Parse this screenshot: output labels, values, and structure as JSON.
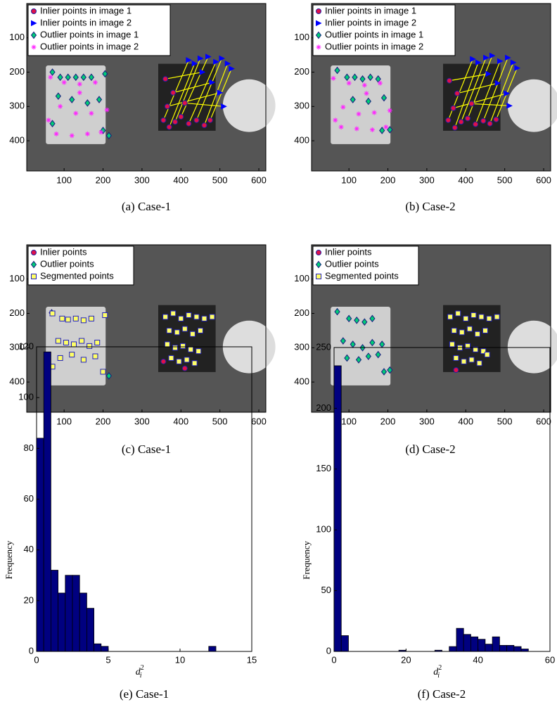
{
  "chart_data": [
    {
      "type": "scatter",
      "caption": "(a) Case-1",
      "xlim": [
        4,
        618
      ],
      "ylim": [
        0,
        488
      ],
      "y_reversed": true,
      "xticks": [
        100,
        200,
        300,
        400,
        500,
        600
      ],
      "yticks": [
        100,
        200,
        300,
        400
      ],
      "legend": "upper left",
      "match_lines": "#ffff00",
      "series": [
        {
          "name": "Inlier points in image 1",
          "marker": "circle",
          "color": "#e0104a",
          "edgecolor": "#2020a0",
          "x": [
            355,
            370,
            385,
            400,
            420,
            440,
            460,
            475,
            360,
            380,
            365,
            410
          ],
          "y": [
            340,
            360,
            345,
            330,
            350,
            340,
            355,
            340,
            220,
            260,
            300,
            290
          ]
        },
        {
          "name": "Inlier points in image 2",
          "marker": "triangle",
          "color": "#0000ff",
          "edgecolor": "#0000ff",
          "x": [
            420,
            435,
            450,
            470,
            490,
            505,
            520,
            530,
            455,
            480,
            500,
            510
          ],
          "y": [
            165,
            175,
            160,
            155,
            170,
            160,
            175,
            190,
            200,
            230,
            260,
            300
          ]
        },
        {
          "name": "Outlier points in image 1",
          "marker": "diamond",
          "color": "#00cc77",
          "edgecolor": "#1a1a80",
          "x": [
            70,
            90,
            110,
            130,
            150,
            170,
            205,
            85,
            120,
            160,
            190,
            70,
            200,
            215
          ],
          "y": [
            200,
            215,
            215,
            215,
            215,
            215,
            205,
            270,
            280,
            290,
            280,
            350,
            370,
            385
          ]
        },
        {
          "name": "Outlier points in image 2",
          "marker": "star",
          "color": "#ff22ff",
          "edgecolor": "#ff22ff",
          "x": [
            65,
            100,
            140,
            180,
            90,
            130,
            170,
            210,
            80,
            120,
            160,
            195,
            60,
            140
          ],
          "y": [
            215,
            230,
            235,
            230,
            300,
            320,
            320,
            310,
            380,
            385,
            380,
            375,
            340,
            260
          ]
        }
      ]
    },
    {
      "type": "scatter",
      "caption": "(b) Case-2",
      "xlim": [
        4,
        618
      ],
      "ylim": [
        0,
        488
      ],
      "y_reversed": true,
      "xticks": [
        100,
        200,
        300,
        400,
        500,
        600
      ],
      "yticks": [
        100,
        200,
        300,
        400
      ],
      "legend": "upper left",
      "match_lines": "#ffff00",
      "series": [
        {
          "name": "Inlier points in image 1",
          "marker": "circle",
          "color": "#e0104a",
          "edgecolor": "#2020a0",
          "x": [
            355,
            372,
            388,
            405,
            425,
            445,
            462,
            478,
            358,
            378,
            368,
            415
          ],
          "y": [
            340,
            362,
            345,
            335,
            352,
            342,
            350,
            338,
            225,
            262,
            305,
            292
          ]
        },
        {
          "name": "Inlier points in image 2",
          "marker": "triangle",
          "color": "#0000ff",
          "edgecolor": "#0000ff",
          "x": [
            418,
            432,
            452,
            468,
            488,
            508,
            522,
            532,
            458,
            482,
            505,
            512
          ],
          "y": [
            162,
            172,
            158,
            152,
            168,
            158,
            172,
            188,
            205,
            232,
            262,
            298
          ]
        },
        {
          "name": "Outlier points in image 1",
          "marker": "diamond",
          "color": "#00cc77",
          "edgecolor": "#1a1a80",
          "x": [
            70,
            95,
            115,
            135,
            155,
            175,
            110,
            150,
            190,
            185,
            205
          ],
          "y": [
            195,
            215,
            215,
            220,
            215,
            220,
            280,
            285,
            275,
            370,
            368
          ]
        },
        {
          "name": "Outlier points in image 2",
          "marker": "star",
          "color": "#ff22ff",
          "edgecolor": "#ff22ff",
          "x": [
            60,
            100,
            140,
            180,
            85,
            125,
            165,
            205,
            80,
            120,
            160,
            195,
            65,
            145
          ],
          "y": [
            218,
            232,
            238,
            232,
            302,
            322,
            318,
            312,
            360,
            365,
            368,
            360,
            340,
            262
          ]
        }
      ]
    },
    {
      "type": "scatter",
      "caption": "(c) Case-1",
      "xlim": [
        4,
        618
      ],
      "ylim": [
        0,
        488
      ],
      "y_reversed": true,
      "xticks": [
        100,
        200,
        300,
        400,
        500,
        600
      ],
      "yticks": [
        100,
        200,
        300,
        400
      ],
      "legend": "upper left",
      "series": [
        {
          "name": "Inlier points",
          "marker": "circle",
          "color": "#e0104a",
          "edgecolor": "#2020a0",
          "x": [
            355,
            410
          ],
          "y": [
            340,
            360
          ]
        },
        {
          "name": "Outlier points",
          "marker": "diamond",
          "color": "#00cc77",
          "edgecolor": "#1a1a80",
          "x": [
            68,
            215
          ],
          "y": [
            198,
            382
          ]
        },
        {
          "name": "Segmented points",
          "marker": "square",
          "color": "#ffff66",
          "edgecolor": "#2020c0",
          "x": [
            70,
            95,
            110,
            130,
            150,
            170,
            205,
            85,
            105,
            125,
            145,
            165,
            185,
            90,
            120,
            150,
            180,
            70,
            200,
            360,
            380,
            400,
            420,
            440,
            460,
            480,
            370,
            390,
            410,
            430,
            450,
            365,
            385,
            405,
            425,
            445,
            375,
            395,
            415,
            435
          ],
          "y": [
            200,
            215,
            218,
            215,
            220,
            215,
            205,
            280,
            285,
            290,
            280,
            295,
            285,
            330,
            320,
            335,
            325,
            355,
            370,
            210,
            200,
            215,
            205,
            210,
            215,
            210,
            250,
            255,
            245,
            260,
            250,
            290,
            300,
            295,
            305,
            310,
            330,
            340,
            335,
            345
          ]
        }
      ]
    },
    {
      "type": "scatter",
      "caption": "(d) Case-2",
      "xlim": [
        4,
        618
      ],
      "ylim": [
        0,
        488
      ],
      "y_reversed": true,
      "xticks": [
        100,
        200,
        300,
        400,
        500,
        600
      ],
      "yticks": [
        100,
        200,
        300,
        400
      ],
      "legend": "upper left",
      "series": [
        {
          "name": "Inlier points",
          "marker": "circle",
          "color": "#e0104a",
          "edgecolor": "#2020a0",
          "x": [
            375
          ],
          "y": [
            365
          ]
        },
        {
          "name": "Outlier points",
          "marker": "diamond",
          "color": "#00cc77",
          "edgecolor": "#1a1a80",
          "x": [
            70,
            100,
            120,
            140,
            160,
            85,
            110,
            135,
            160,
            185,
            95,
            125,
            150,
            175,
            190,
            205
          ],
          "y": [
            195,
            215,
            220,
            225,
            215,
            280,
            290,
            300,
            285,
            290,
            330,
            335,
            325,
            320,
            370,
            365
          ]
        },
        {
          "name": "Segmented points",
          "marker": "square",
          "color": "#ffff66",
          "edgecolor": "#2020c0",
          "x": [
            360,
            380,
            400,
            420,
            440,
            460,
            480,
            370,
            390,
            410,
            430,
            450,
            365,
            385,
            405,
            425,
            445,
            375,
            395,
            415,
            435,
            455
          ],
          "y": [
            210,
            200,
            215,
            205,
            210,
            215,
            210,
            250,
            255,
            245,
            260,
            250,
            290,
            300,
            295,
            305,
            310,
            330,
            340,
            335,
            345,
            320
          ]
        }
      ]
    },
    {
      "type": "histogram",
      "caption": "(e) Case-1",
      "ylabel": "Frequency",
      "xlabel": {
        "base": "d",
        "sub": "i",
        "sup": "2"
      },
      "xlim": [
        0,
        15
      ],
      "ylim": [
        0,
        120
      ],
      "xticks": [
        0,
        5,
        10,
        15
      ],
      "yticks": [
        0,
        20,
        40,
        60,
        80,
        100,
        120
      ],
      "color": "#000080",
      "bins": [
        0,
        0.5,
        1,
        1.5,
        2,
        2.5,
        3,
        3.5,
        4,
        4.5,
        5,
        5.5,
        6,
        6.5,
        7,
        7.5,
        8,
        8.5,
        9,
        9.5,
        10,
        10.5,
        11,
        11.5,
        12,
        12.5
      ],
      "values": [
        84,
        118,
        32,
        23,
        30,
        30,
        23,
        17,
        3,
        2,
        0,
        0,
        0,
        0,
        0,
        0,
        0,
        0,
        0,
        0,
        0,
        0,
        0,
        0,
        2
      ]
    },
    {
      "type": "histogram",
      "caption": "(f) Case-2",
      "ylabel": "Frequency",
      "xlabel": {
        "base": "d",
        "sub": "i",
        "sup": "2"
      },
      "xlim": [
        0,
        60
      ],
      "ylim": [
        0,
        250
      ],
      "xticks": [
        0,
        20,
        40,
        60
      ],
      "yticks": [
        0,
        50,
        100,
        150,
        200,
        250
      ],
      "color": "#000080",
      "bins": [
        0,
        2,
        4,
        6,
        8,
        10,
        12,
        14,
        16,
        18,
        20,
        22,
        24,
        26,
        28,
        30,
        32,
        34,
        36,
        38,
        40,
        42,
        44,
        46,
        48,
        50,
        52,
        54
      ],
      "values": [
        235,
        13,
        0,
        0,
        0,
        0,
        0,
        0,
        0,
        1,
        0,
        0,
        0,
        0,
        1,
        0,
        4,
        19,
        14,
        12,
        10,
        6,
        12,
        5,
        5,
        4,
        2
      ]
    }
  ]
}
